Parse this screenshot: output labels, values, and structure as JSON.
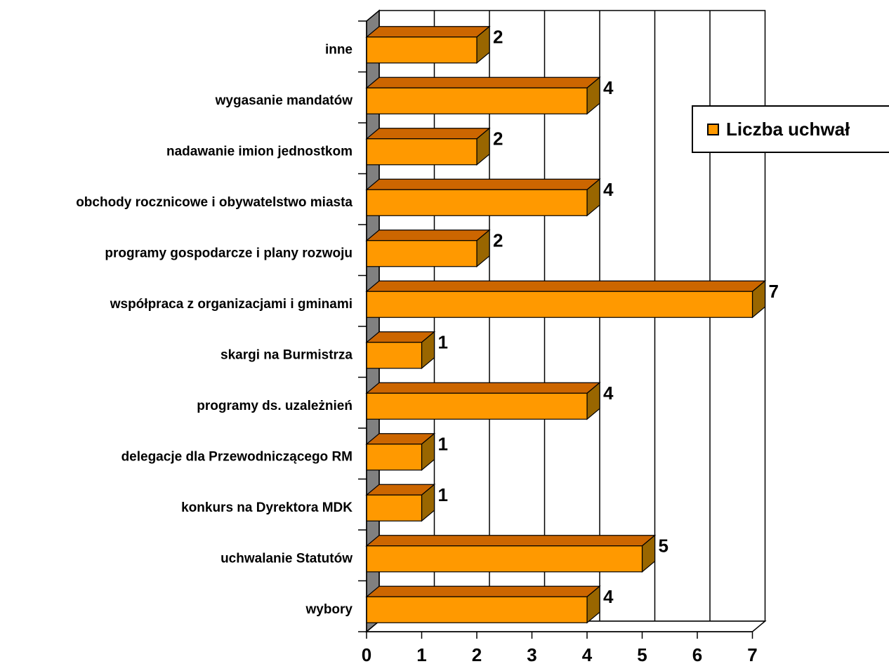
{
  "chart_data": {
    "type": "bar",
    "orientation": "horizontal",
    "categories": [
      "inne",
      "wygasanie mandatów",
      "nadawanie imion jednostkom",
      "obchody rocznicowe i obywatelstwo miasta",
      "programy gospodarcze i plany rozwoju",
      "współpraca z organizacjami i gminami",
      "skargi na Burmistrza",
      "programy ds. uzależnień",
      "delegacje dla Przewodniczącego RM",
      "konkurs na Dyrektora MDK",
      "uchwalanie Statutów",
      "wybory"
    ],
    "series": [
      {
        "name": "Liczba uchwał",
        "values": [
          2,
          4,
          2,
          4,
          2,
          7,
          1,
          4,
          1,
          1,
          5,
          4
        ],
        "data_labels": [
          "2",
          "4",
          "2",
          "4",
          "2",
          "7",
          "1",
          "4",
          "1",
          "1",
          "5",
          "4"
        ]
      }
    ],
    "x_ticks": [
      "0",
      "1",
      "2",
      "3",
      "4",
      "5",
      "6",
      "7"
    ],
    "xlim": [
      0,
      7
    ],
    "grid": true,
    "legend_position": "right",
    "colors": {
      "bar_front": "#FF9900",
      "bar_top": "#CC6600",
      "bar_side": "#996600",
      "wall": "#808080",
      "axis": "#000000"
    }
  }
}
